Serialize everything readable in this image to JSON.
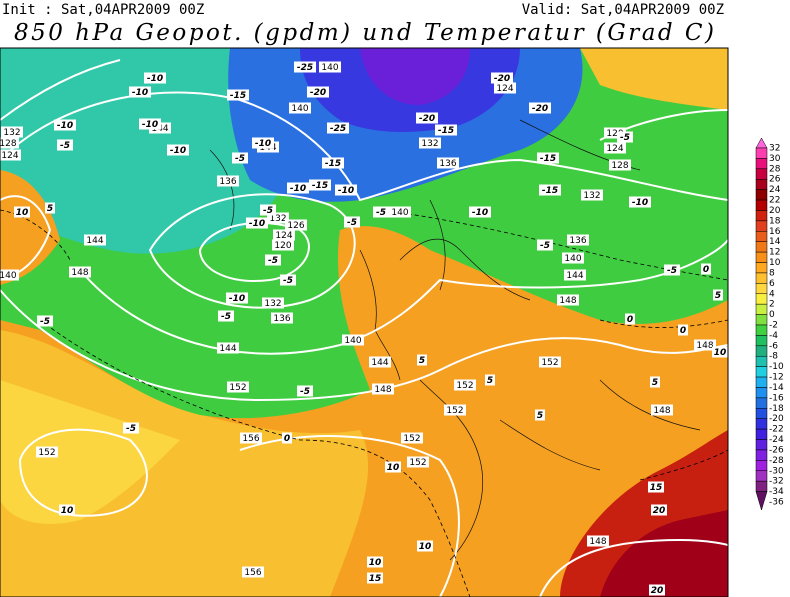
{
  "header": {
    "init": "Init : Sat,04APR2009 00Z",
    "valid": "Valid: Sat,04APR2009 00Z",
    "title": "850 hPa Geopot. (gpdm) und Temperatur (Grad C)"
  },
  "legend": {
    "levels": [
      32,
      30,
      28,
      26,
      24,
      22,
      20,
      18,
      16,
      14,
      12,
      10,
      8,
      6,
      4,
      2,
      0,
      -2,
      -4,
      -6,
      -8,
      -10,
      -12,
      -14,
      -16,
      -18,
      -20,
      -22,
      -24,
      -26,
      -28,
      -30,
      -32,
      -34,
      -36
    ],
    "colors": [
      "#ff66dd",
      "#ff3fb0",
      "#e8107a",
      "#c80040",
      "#a8001c",
      "#8c0000",
      "#b40000",
      "#d02010",
      "#e04020",
      "#e85c1c",
      "#f07818",
      "#f89018",
      "#ffa820",
      "#ffc030",
      "#ffd840",
      "#f8f040",
      "#c8f040",
      "#80e040",
      "#40d040",
      "#20c060",
      "#20b080",
      "#20c0b0",
      "#20d0e0",
      "#20b0f0",
      "#2090f0",
      "#2070e0",
      "#2050e0",
      "#3030e0",
      "#4020e0",
      "#6020e0",
      "#8020e0",
      "#a020e0",
      "#a030c0",
      "#802080",
      "#601060"
    ]
  },
  "geopotential_labels": [
    140,
    124,
    140,
    144,
    132,
    120,
    124,
    128,
    136,
    144,
    136,
    132,
    140,
    136,
    140,
    144,
    132,
    126,
    124,
    120,
    144,
    148,
    148,
    132,
    136,
    144,
    140,
    144,
    148,
    152,
    152,
    152,
    152,
    156,
    152,
    152,
    152,
    148,
    148,
    156,
    148,
    132,
    128,
    124,
    140
  ],
  "temperature_labels": [
    -25,
    -10,
    -10,
    -15,
    -20,
    -25,
    -20,
    -15,
    -20,
    -20,
    -5,
    -10,
    -5,
    -10,
    -10,
    -5,
    -10,
    -15,
    -15,
    -10,
    -10,
    -15,
    -15,
    -10,
    -10,
    -5,
    -5,
    -5,
    -5,
    -10,
    -5,
    -5,
    -10,
    -5,
    -5,
    0,
    0,
    0,
    -5,
    -5,
    -5,
    0,
    10,
    5,
    10,
    10,
    10,
    10,
    15,
    15,
    20,
    20,
    5,
    5,
    5,
    5,
    10,
    5
  ]
}
